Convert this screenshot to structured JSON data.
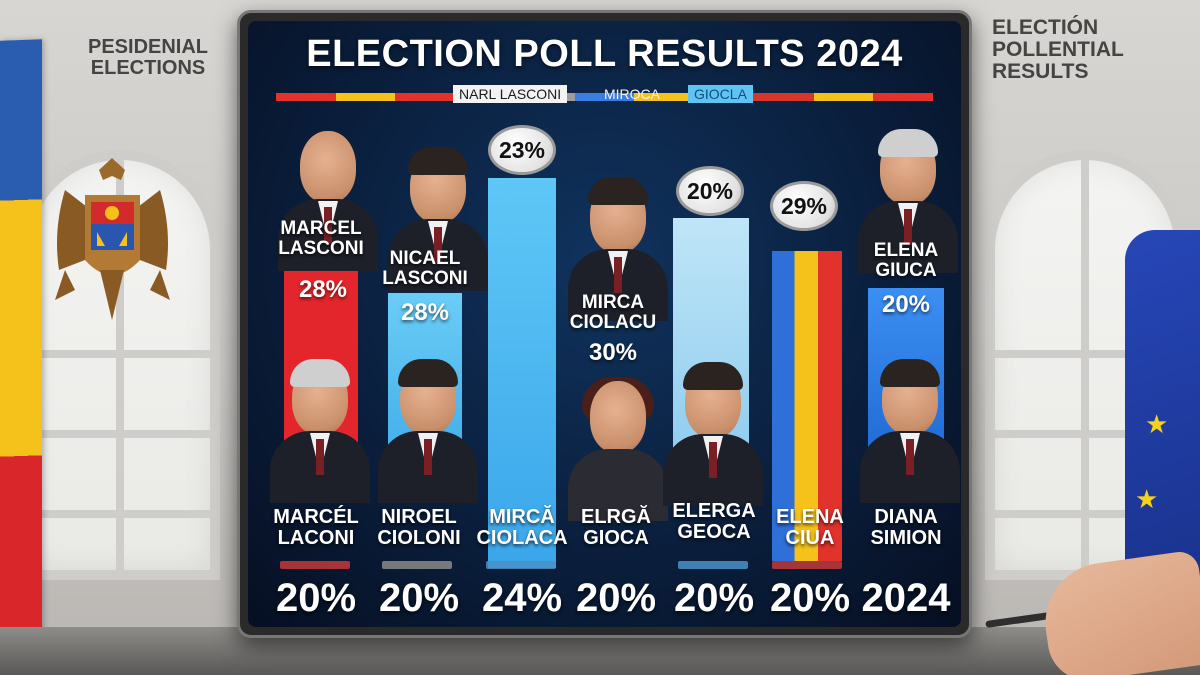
{
  "background": {
    "left_caption_line1": "PESIDENIAL",
    "left_caption_line2": "ELECTIONS",
    "right_caption_line1": "ELECTIÓN",
    "right_caption_line2": "POLLENTIAL",
    "right_caption_line3": "RESULTS",
    "flag_left_colors": [
      "#2a5db0",
      "#f4c21b",
      "#d8262b"
    ],
    "flag_right_color": "#1d3798"
  },
  "screen": {
    "title": "ELECTION POLL RESULTS 2024",
    "sub_labels": [
      "NARL LASCONI",
      "MIROCA",
      "GIOCLA"
    ],
    "strip_colors": [
      "#e2322c",
      "#f4c21b",
      "#e2322c",
      "#3a7ee0",
      "#9d9d9d",
      "#3a7ee0",
      "#f4c21b",
      "#e2322c",
      "#d8362a",
      "#f4c21b",
      "#e2322c"
    ]
  },
  "upper_row": [
    {
      "name_line1": "MARCEL",
      "name_line2": "LASCONI",
      "percent": "28%",
      "bar_color": "#e3262b"
    },
    {
      "name_line1": "NICAEL",
      "name_line2": "LASCONI",
      "percent": "28%",
      "bar_color": "#4fbdf0"
    },
    {
      "name_line1": "",
      "name_line2": "",
      "percent": "23%",
      "bar_color": "#5fc7f6"
    },
    {
      "name_line1": "MIRCA",
      "name_line2": "CIOLACU",
      "percent": "30%",
      "bar_color": ""
    },
    {
      "name_line1": "",
      "name_line2": "",
      "percent": "20%",
      "bar_color": "#a9dcf5"
    },
    {
      "name_line1": "",
      "name_line2": "",
      "percent": "29%",
      "bar_color": "tricolor"
    },
    {
      "name_line1": "ELENA",
      "name_line2": "GIUCA",
      "percent": "20%",
      "bar_color": "#2a7ff0"
    }
  ],
  "lower_row": [
    {
      "name_line1": "MARCÉL",
      "name_line2": "LACONI",
      "percent": "20%"
    },
    {
      "name_line1": "NIROEL",
      "name_line2": "CIOLONI",
      "percent": "20%"
    },
    {
      "name_line1": "MIRCĂ",
      "name_line2": "CIOLACA",
      "percent": "24%"
    },
    {
      "name_line1": "ELRGĂ",
      "name_line2": "GIOCA",
      "percent": "20%"
    },
    {
      "name_line1": "ELERGA",
      "name_line2": "GEOCA",
      "percent": "20%"
    },
    {
      "name_line1": "ELENA",
      "name_line2": "CIUA",
      "percent": "20%"
    },
    {
      "name_line1": "DIANA",
      "name_line2": "SIMION",
      "percent": "2024"
    }
  ]
}
